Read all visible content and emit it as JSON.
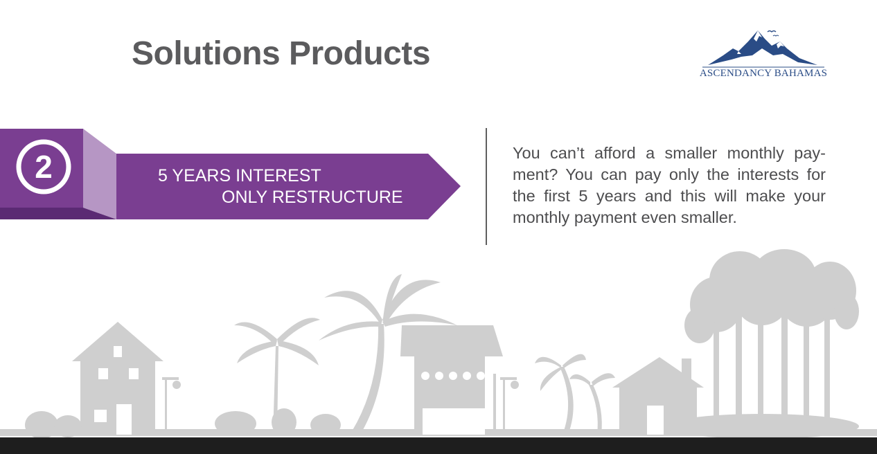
{
  "header": {
    "title": "Solutions Products"
  },
  "logo": {
    "name": "ASCENDANCY BAHAMAS",
    "icon": "mountain-logo-icon",
    "color": "#2a4c86"
  },
  "step": {
    "number": "2",
    "label_line1": "5 YEARS INTEREST",
    "label_line2": "ONLY RESTRUCTURE",
    "color": "#7a3e91"
  },
  "description": {
    "text": "You can’t afford a smaller monthly pay-ment? You can pay only the interests for the first 5 years and this will make your monthly payment even smaller."
  },
  "illustration": {
    "icon": "village-silhouette-icon",
    "color": "#cfcfcf",
    "ground_color": "#1e1e1e"
  }
}
